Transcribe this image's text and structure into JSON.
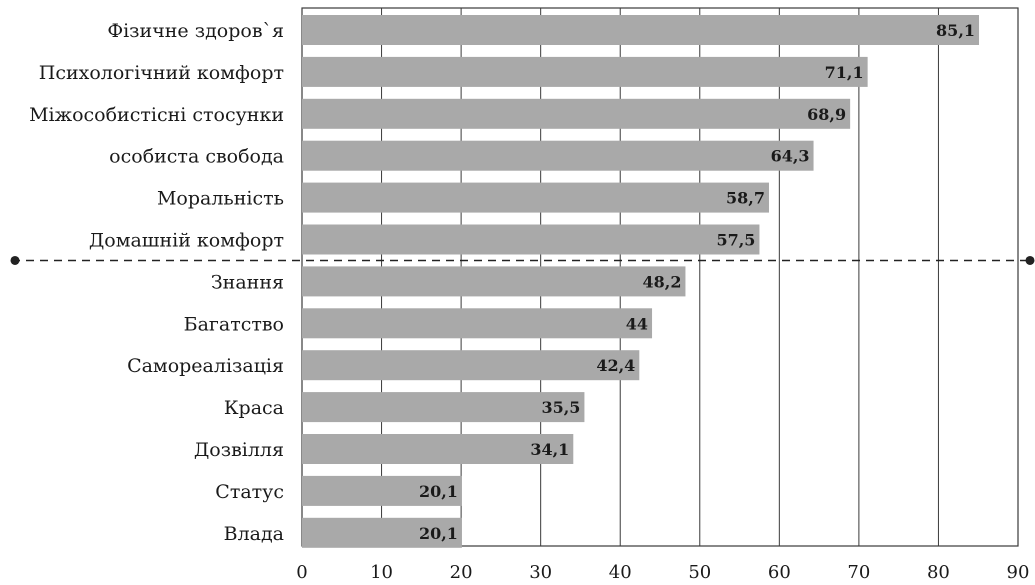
{
  "chart_data": {
    "type": "bar",
    "orientation": "horizontal",
    "categories": [
      "Фізичне здоров`я",
      "Психологічний комфорт",
      "Міжособистісні стосунки",
      "особиста свобода",
      "Моральність",
      "Домашній комфорт",
      "Знання",
      "Багатство",
      "Самореалізація",
      "Краса",
      "Дозвілля",
      "Статус",
      "Влада"
    ],
    "values": [
      85.1,
      71.1,
      68.9,
      64.3,
      58.7,
      57.5,
      48.2,
      44,
      42.4,
      35.5,
      34.1,
      20.1,
      20.1
    ],
    "value_labels": [
      "85,1",
      "71,1",
      "68,9",
      "64,3",
      "58,7",
      "57,5",
      "48,2",
      "44",
      "42,4",
      "35,5",
      "34,1",
      "20,1",
      "20,1"
    ],
    "xlim": [
      0,
      90
    ],
    "xticks": [
      0,
      10,
      20,
      30,
      40,
      50,
      60,
      70,
      80,
      90
    ],
    "grid": true,
    "divider_after_index": 5,
    "colors": {
      "bar": "#a9a9a9",
      "grid": "#3a3a3a",
      "text": "#1a1a1a"
    },
    "title": "",
    "xlabel": "",
    "ylabel": ""
  }
}
